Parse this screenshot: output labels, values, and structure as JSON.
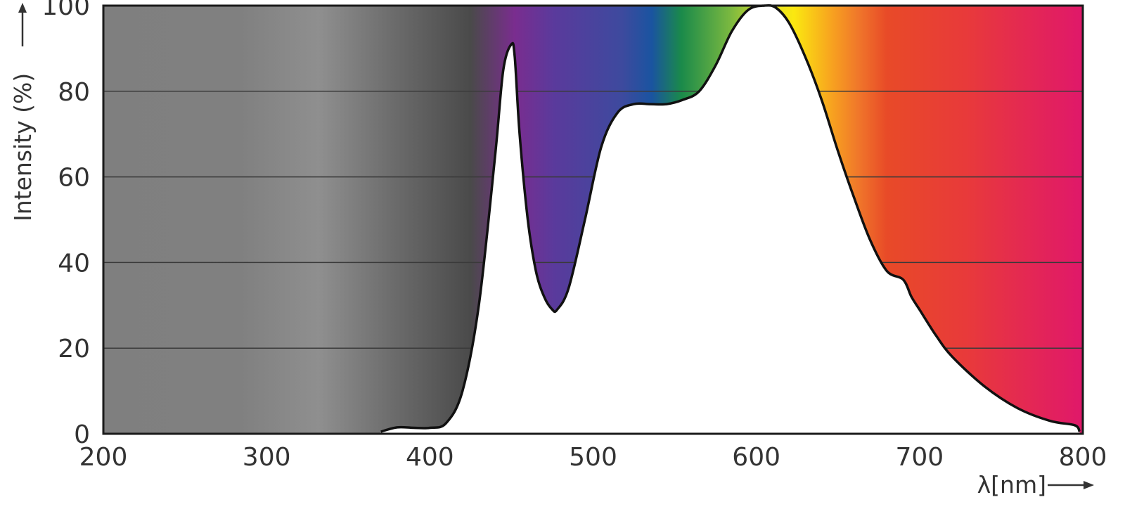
{
  "chart_data": {
    "type": "area",
    "title": "",
    "xlabel": "λ[nm]",
    "ylabel": "Intensity (%)",
    "xlim": [
      200,
      800
    ],
    "ylim": [
      0,
      100
    ],
    "x_ticks": [
      "200",
      "300",
      "400",
      "500",
      "600",
      "700",
      "800"
    ],
    "y_ticks": [
      "0",
      "20",
      "40",
      "60",
      "80",
      "100"
    ],
    "grid": "horizontal",
    "series": [
      {
        "x": [
          370,
          380,
          390,
          400,
          410,
          420,
          430,
          440,
          445,
          450,
          452,
          455,
          460,
          465,
          470,
          475,
          478,
          485,
          495,
          505,
          515,
          525,
          535,
          545,
          555,
          565,
          575,
          585,
          595,
          605,
          612,
          620,
          630,
          640,
          650,
          660,
          670,
          680,
          690,
          695,
          700,
          710,
          720,
          740,
          760,
          780,
          795,
          798
        ],
        "y": [
          0.5,
          1.5,
          1.4,
          1.4,
          2.5,
          10,
          30,
          65,
          85,
          91,
          88,
          70,
          50,
          38,
          32,
          29,
          29,
          34,
          50,
          67,
          75,
          77,
          77,
          77,
          78,
          80,
          86,
          94,
          99,
          100,
          99.5,
          96,
          88,
          78,
          66,
          55,
          45,
          38,
          36,
          32,
          29,
          23,
          18,
          11,
          6,
          3,
          2,
          0.5
        ]
      }
    ],
    "spectrum_colors": [
      "#808080",
      "#8c8c8c",
      "#5a5a5a",
      "#3a3a3a",
      "#7a2a8a",
      "#3a4aa0",
      "#1a5aa0",
      "#1a8a4a",
      "#a8c838",
      "#f0e818",
      "#f0a020",
      "#e84028",
      "#e0186a"
    ]
  }
}
